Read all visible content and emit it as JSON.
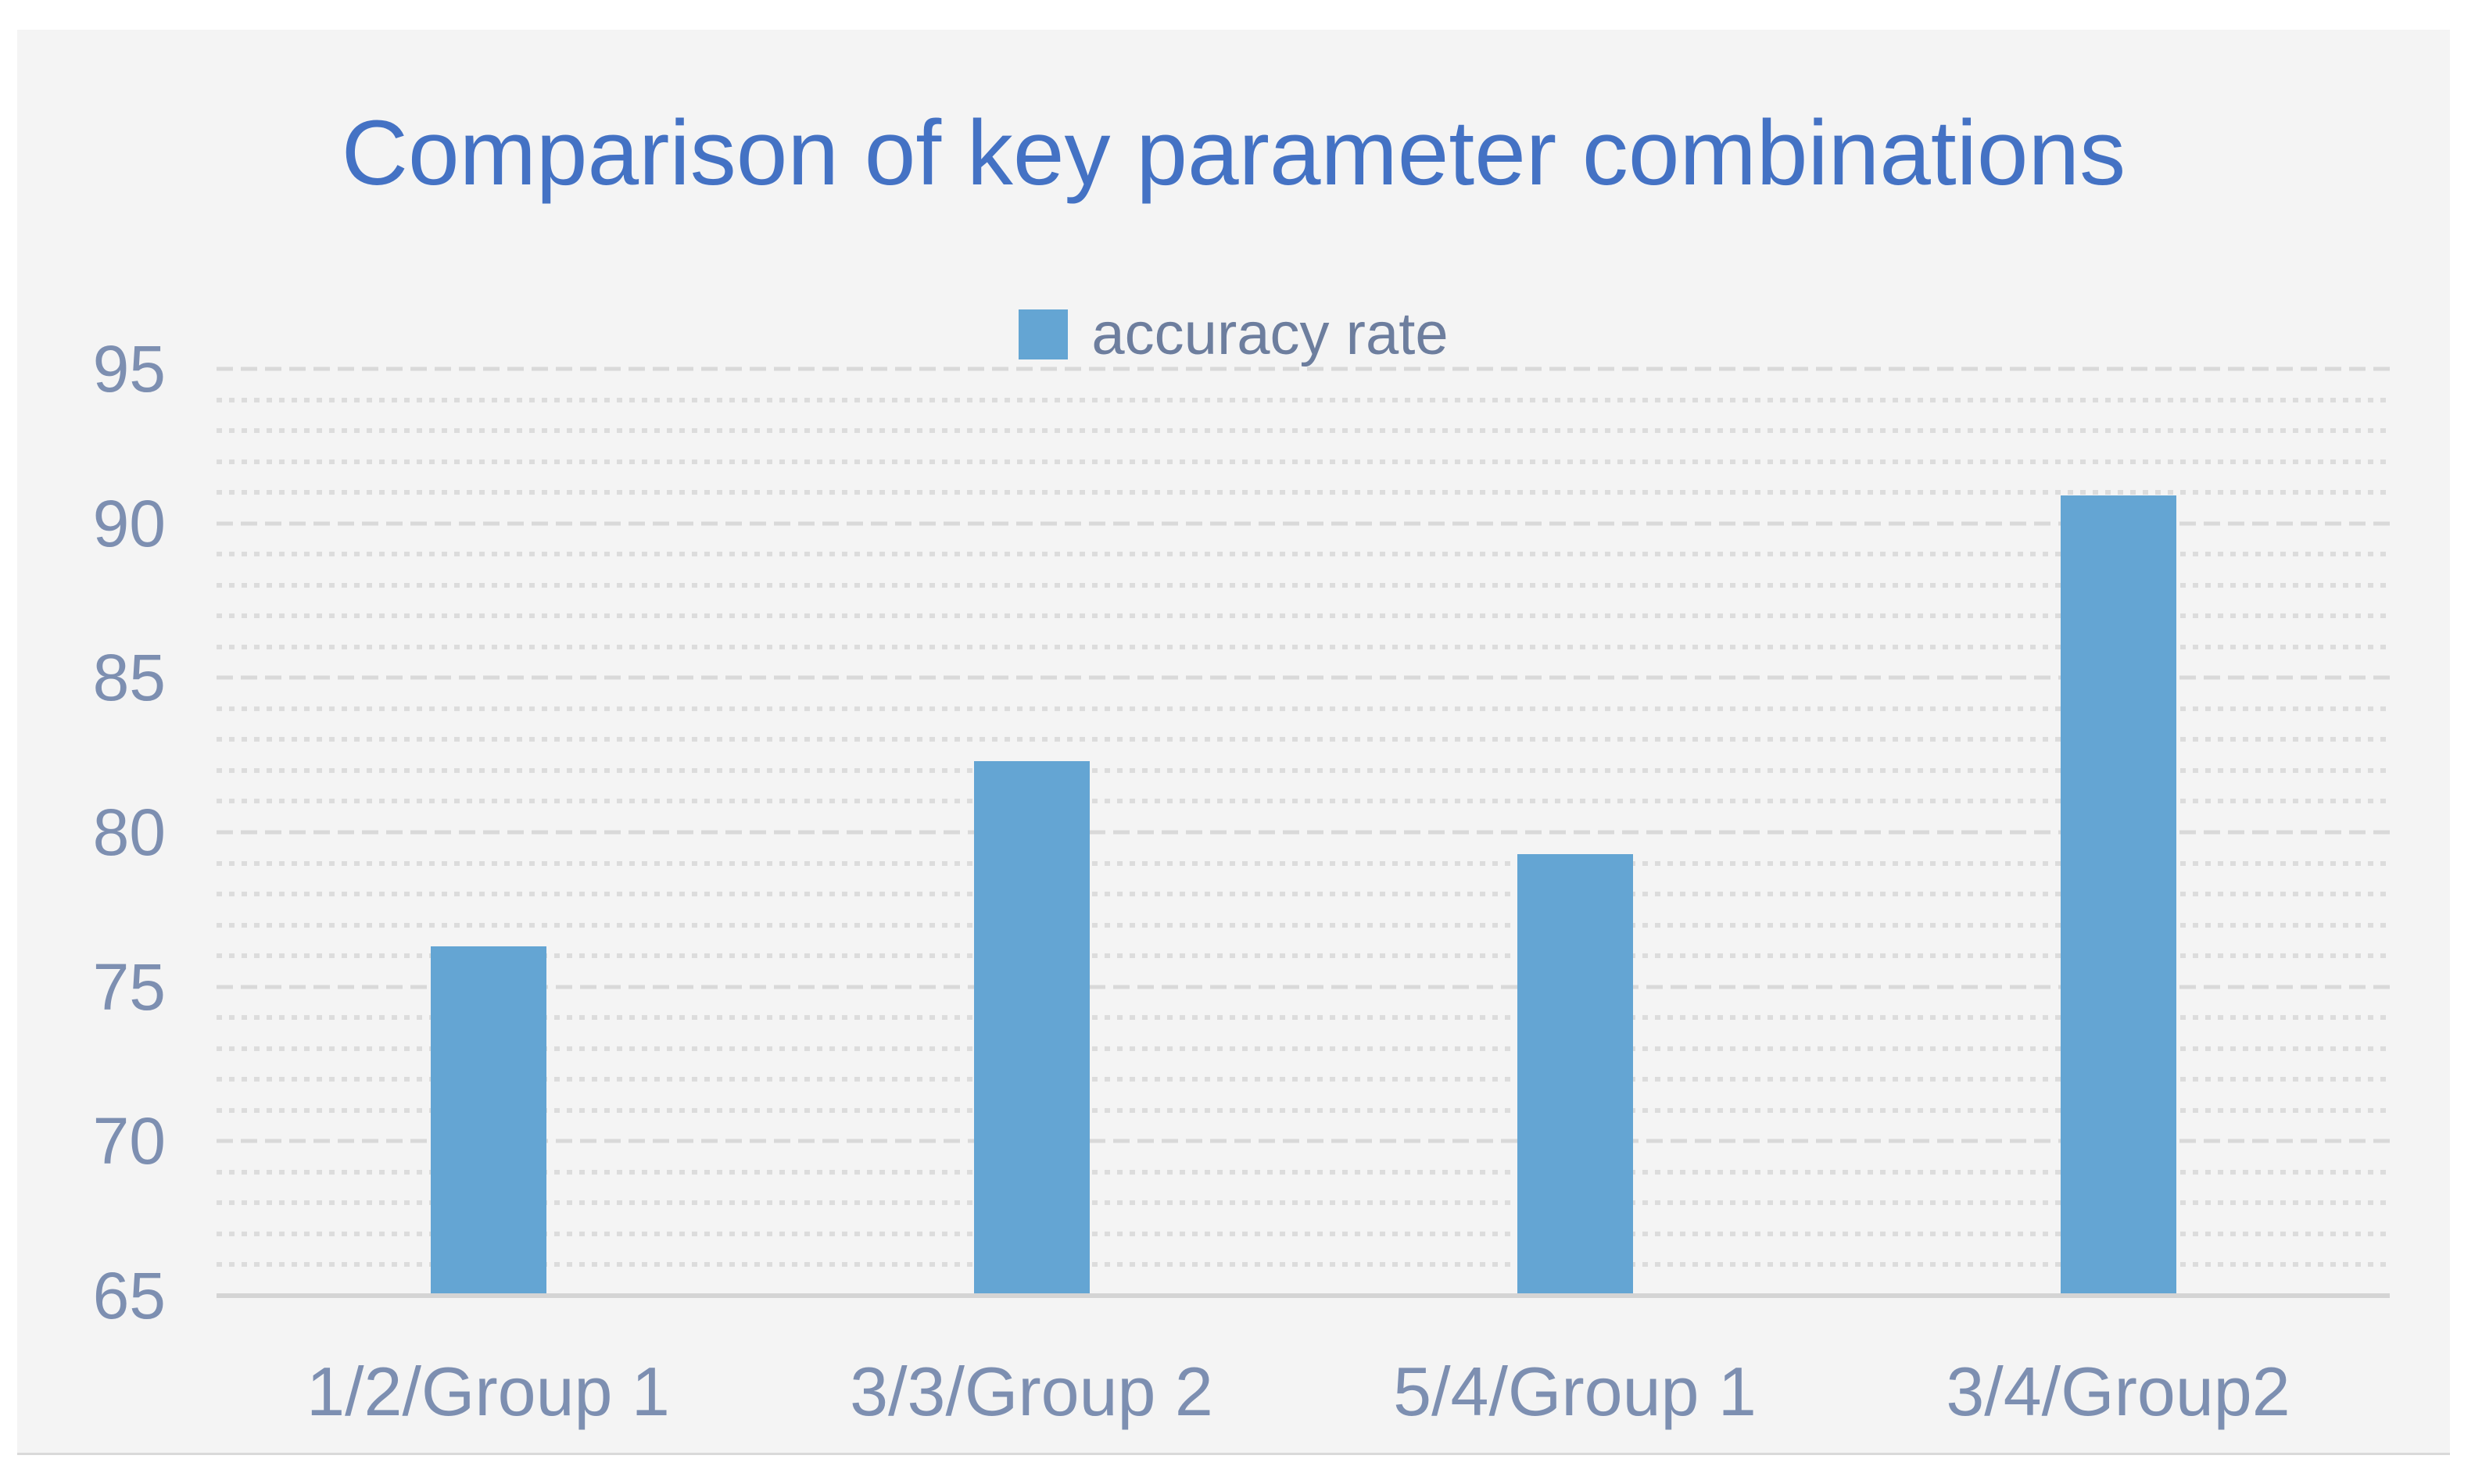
{
  "title": "Comparison of key parameter combinations",
  "legend": {
    "label": "accuracy rate"
  },
  "colors": {
    "bar": "#64a5d3",
    "title_text": "#4472c4",
    "axis_labels": "#7d8fb1",
    "legend_text": "#6d7e9e",
    "gridline_major": "#d9d9d9",
    "gridline_minor": "#dcdcdc",
    "axis_line": "#d4d4d4",
    "panel_background": "#f4f4f4",
    "page_background": "#ffffff"
  },
  "chart_data": {
    "type": "bar",
    "title": "Comparison of key parameter combinations",
    "categories": [
      "1/2/Group 1",
      "3/3/Group 2",
      "5/4/Group 1",
      "3/4/Group2"
    ],
    "series": [
      {
        "name": "accuracy rate",
        "values": [
          76.3,
          82.3,
          79.3,
          90.9
        ]
      }
    ],
    "xlabel": "",
    "ylabel": "",
    "ylim": [
      65,
      95
    ],
    "yticks": [
      65,
      70,
      75,
      80,
      85,
      90,
      95
    ],
    "minor_gridline_unit": 1,
    "grid": {
      "major": "dashed",
      "minor": "dotted",
      "orientation": "horizontal"
    },
    "legend_position": "top-center"
  }
}
